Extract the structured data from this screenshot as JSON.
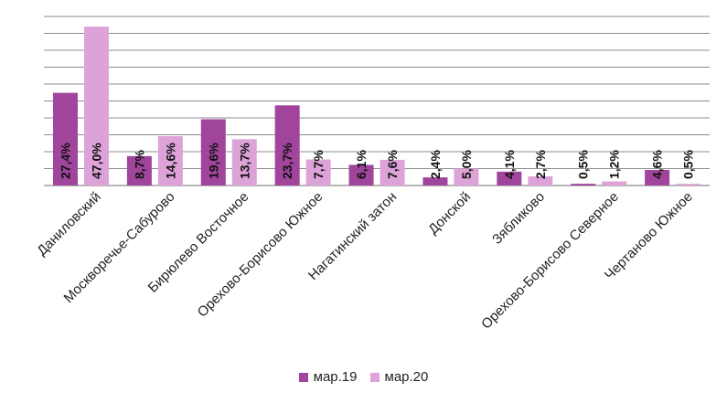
{
  "chart_data": {
    "type": "bar",
    "categories": [
      "Даниловский",
      "Москворечье-Сабурово",
      "Бирюлево Восточное",
      "Орехово-Борисово Южное",
      "Нагатинский затон",
      "Донской",
      "Зябликово",
      "Орехово-Борисово Северное",
      "Чертаново Южное"
    ],
    "series": [
      {
        "name": "мар.19",
        "values": [
          27.4,
          8.7,
          19.6,
          23.7,
          6.1,
          2.4,
          4.1,
          0.5,
          4.6
        ],
        "labels": [
          "27,4%",
          "8,7%",
          "19,6%",
          "23,7%",
          "6,1%",
          "2,4%",
          "4,1%",
          "0,5%",
          "4,6%"
        ],
        "color": "#a0449c"
      },
      {
        "name": "мар.20",
        "values": [
          47.0,
          14.6,
          13.7,
          7.7,
          7.6,
          5.0,
          2.7,
          1.2,
          0.5
        ],
        "labels": [
          "47,0%",
          "14,6%",
          "13,7%",
          "7,7%",
          "7,6%",
          "5,0%",
          "2,7%",
          "1,2%",
          "0,5%"
        ],
        "color": "#dda3d9"
      }
    ],
    "ylim": [
      0,
      50
    ],
    "grid": true,
    "legend_position": "bottom"
  }
}
